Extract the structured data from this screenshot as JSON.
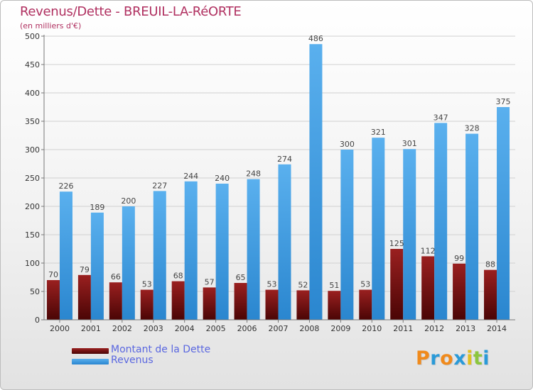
{
  "header": {
    "title": "Revenus/Dette - BREUIL-LA-RéORTE",
    "subtitle": "(en milliers d'€)"
  },
  "colors": {
    "debt": "#7a1010",
    "revenue": "#3d9be0",
    "title": "#b03060",
    "legend_text": "#5a67e0",
    "grid": "#d0d0d0"
  },
  "chart_data": {
    "type": "bar",
    "categories": [
      "2000",
      "2001",
      "2002",
      "2003",
      "2004",
      "2005",
      "2006",
      "2007",
      "2008",
      "2009",
      "2010",
      "2011",
      "2012",
      "2013",
      "2014"
    ],
    "series": [
      {
        "name": "Montant de la Dette",
        "values": [
          70,
          79,
          66,
          53,
          68,
          57,
          65,
          53,
          52,
          51,
          53,
          125,
          112,
          99,
          88
        ]
      },
      {
        "name": "Revenus",
        "values": [
          226,
          189,
          200,
          227,
          244,
          240,
          248,
          274,
          486,
          300,
          321,
          301,
          347,
          328,
          375
        ]
      }
    ],
    "title": "Revenus/Dette - BREUIL-LA-RéORTE",
    "ylabel": "(en milliers d'€)",
    "ylim": [
      0,
      500
    ],
    "yticks": [
      0,
      50,
      100,
      150,
      200,
      250,
      300,
      350,
      400,
      450,
      500
    ],
    "grid": true,
    "legend_position": "bottom-left"
  },
  "logo": {
    "text": "Proxiti",
    "letters": [
      "P",
      "r",
      "o",
      "x",
      "i",
      "t",
      "i"
    ],
    "colors": [
      "#f08a1c",
      "#2a9ad8",
      "#f08a1c",
      "#2a9ad8",
      "#e0c020",
      "#8cc63e",
      "#2a9ad8"
    ]
  }
}
